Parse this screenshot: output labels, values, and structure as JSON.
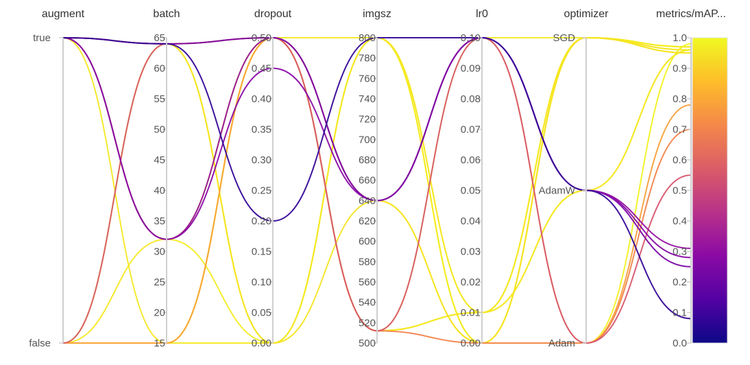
{
  "chart_data": {
    "type": "parallel_coordinates",
    "axes": [
      {
        "name": "augment",
        "kind": "categorical",
        "categories": [
          "true",
          "false"
        ]
      },
      {
        "name": "batch",
        "kind": "numeric",
        "range": [
          15,
          65
        ],
        "ticks": [
          15,
          20,
          25,
          30,
          35,
          40,
          45,
          50,
          55,
          60,
          65
        ]
      },
      {
        "name": "dropout",
        "kind": "numeric",
        "range": [
          0.0,
          0.5
        ],
        "ticks": [
          "0.00",
          "0.05",
          "0.10",
          "0.15",
          "0.20",
          "0.25",
          "0.30",
          "0.35",
          "0.40",
          "0.45",
          "0.50"
        ]
      },
      {
        "name": "imgsz",
        "kind": "numeric",
        "range": [
          500,
          800
        ],
        "ticks": [
          500,
          520,
          540,
          560,
          580,
          600,
          620,
          640,
          660,
          680,
          700,
          720,
          740,
          760,
          780,
          800
        ]
      },
      {
        "name": "lr0",
        "kind": "numeric",
        "range": [
          0.0,
          0.1
        ],
        "ticks": [
          "0.00",
          "0.01",
          "0.02",
          "0.03",
          "0.04",
          "0.05",
          "0.06",
          "0.07",
          "0.08",
          "0.09",
          "0.10"
        ]
      },
      {
        "name": "optimizer",
        "kind": "categorical",
        "categories": [
          "SGD",
          "AdamW",
          "Adam"
        ]
      },
      {
        "name": "metrics/mAP...",
        "kind": "numeric",
        "range": [
          0.0,
          1.0
        ],
        "ticks": [
          "0.0",
          "0.1",
          "0.2",
          "0.3",
          "0.4",
          "0.5",
          "0.6",
          "0.7",
          "0.8",
          "0.9",
          "1.0"
        ]
      }
    ],
    "runs": [
      {
        "augment": "true",
        "batch": 64,
        "dropout": 0.2,
        "imgsz": 800,
        "lr0": 0.1,
        "optimizer": "AdamW",
        "map": 0.08
      },
      {
        "augment": "true",
        "batch": 64,
        "dropout": 0.5,
        "imgsz": 640,
        "lr0": 0.1,
        "optimizer": "AdamW",
        "map": 0.25
      },
      {
        "augment": "true",
        "batch": 32,
        "dropout": 0.5,
        "imgsz": 640,
        "lr0": 0.1,
        "optimizer": "AdamW",
        "map": 0.31
      },
      {
        "augment": "true",
        "batch": 32,
        "dropout": 0.45,
        "imgsz": 640,
        "lr0": 0.1,
        "optimizer": "AdamW",
        "map": 0.28
      },
      {
        "augment": "false",
        "batch": 64,
        "dropout": 0.5,
        "imgsz": 512,
        "lr0": 0.1,
        "optimizer": "Adam",
        "map": 0.55
      },
      {
        "augment": "true",
        "batch": 64,
        "dropout": 0.5,
        "imgsz": 512,
        "lr0": 0.0,
        "optimizer": "Adam",
        "map": 0.7
      },
      {
        "augment": "false",
        "batch": 15,
        "dropout": 0.5,
        "imgsz": 640,
        "lr0": 0.1,
        "optimizer": "Adam",
        "map": 0.78
      },
      {
        "augment": "true",
        "batch": 32,
        "dropout": 0.0,
        "imgsz": 800,
        "lr0": 0.0,
        "optimizer": "SGD",
        "map": 0.97
      },
      {
        "augment": "true",
        "batch": 15,
        "dropout": 0.0,
        "imgsz": 800,
        "lr0": 0.01,
        "optimizer": "AdamW",
        "map": 0.96
      },
      {
        "augment": "false",
        "batch": 64,
        "dropout": 0.0,
        "imgsz": 800,
        "lr0": 0.0,
        "optimizer": "SGD",
        "map": 0.97
      },
      {
        "augment": "false",
        "batch": 32,
        "dropout": 0.5,
        "imgsz": 512,
        "lr0": 0.01,
        "optimizer": "SGD",
        "map": 0.96
      },
      {
        "augment": "false",
        "batch": 15,
        "dropout": 0.5,
        "imgsz": 640,
        "lr0": 0.0,
        "optimizer": "SGD",
        "map": 0.95
      },
      {
        "augment": "true",
        "batch": 64,
        "dropout": 0.0,
        "imgsz": 800,
        "lr0": 0.0,
        "optimizer": "Adam",
        "map": 0.98
      },
      {
        "augment": "false",
        "batch": 15,
        "dropout": 0.5,
        "imgsz": 512,
        "lr0": 0.01,
        "optimizer": "SGD",
        "map": 0.97
      },
      {
        "augment": "true",
        "batch": 32,
        "dropout": 0.5,
        "imgsz": 800,
        "lr0": 0.01,
        "optimizer": "SGD",
        "map": 0.96
      },
      {
        "augment": "false",
        "batch": 64,
        "dropout": 0.0,
        "imgsz": 640,
        "lr0": 0.0,
        "optimizer": "SGD",
        "map": 0.95
      },
      {
        "augment": "false",
        "batch": 15,
        "dropout": 0.5,
        "imgsz": 512,
        "lr0": 0.01,
        "optimizer": "AdamW",
        "map": 0.96
      },
      {
        "augment": "false",
        "batch": 15,
        "dropout": 0.5,
        "imgsz": 512,
        "lr0": 0.1,
        "optimizer": "SGD",
        "map": 0.97
      }
    ],
    "colorscale": {
      "metric": "metrics/mAP...",
      "range": [
        0.0,
        1.0
      ],
      "stops": [
        "#0d0887",
        "#5302a3",
        "#8b0aa5",
        "#b83289",
        "#db5c68",
        "#f48849",
        "#febd2a",
        "#f0f921"
      ]
    }
  }
}
